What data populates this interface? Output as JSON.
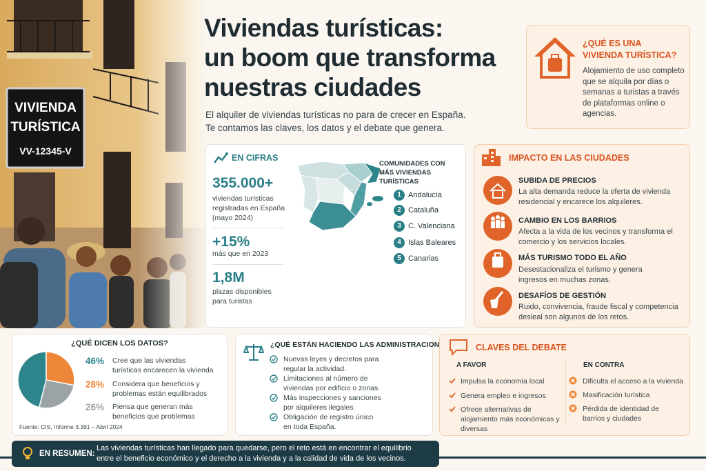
{
  "photo": {
    "sign_line1": "VIVIENDA",
    "sign_line2": "TURÍSTICA",
    "sign_code": "VV-12345-V"
  },
  "header": {
    "title_lines": [
      "Viviendas turísticas:",
      "un boom que transforma",
      "nuestras ciudades"
    ],
    "subtitle_lines": [
      "El alquiler de viviendas turísticas no para de crecer en España.",
      "Te contamos las claves, los datos y el debate que genera."
    ]
  },
  "definition": {
    "title_lines": [
      "¿QUÉ ES UNA",
      "VIVIENDA TURÍSTICA?"
    ],
    "body": "Alojamiento de uso completo que se alquila por días o semanas a turistas a través de plataformas online o agencias."
  },
  "figures": {
    "title": "EN CIFRAS",
    "stats": [
      {
        "value": "355.000+",
        "text": "viviendas turísticas registradas en España (mayo 2024)"
      },
      {
        "value": "+15%",
        "text": "más que en 2023"
      },
      {
        "value": "1,8M",
        "text": "plazas disponibles para turistas"
      }
    ]
  },
  "communities": {
    "title": "COMUNIDADES CON MÁS VIVIENDAS TURÍSTICAS",
    "items": [
      {
        "rank": 1,
        "name": "Andalucía"
      },
      {
        "rank": 2,
        "name": "Cataluña"
      },
      {
        "rank": 3,
        "name": "C. Valenciana"
      },
      {
        "rank": 4,
        "name": "Islas Baleares"
      },
      {
        "rank": 5,
        "name": "Canarias"
      }
    ]
  },
  "impact": {
    "title": "IMPACTO EN LAS CIUDADES",
    "items": [
      {
        "title": "SUBIDA DE PRECIOS",
        "text": "La alta demanda reduce la oferta de vivienda residencial y encarece los alquileres."
      },
      {
        "title": "CAMBIO EN LOS BARRIOS",
        "text": "Afecta a la vida de los vecinos y transforma el comercio y los servicios locales."
      },
      {
        "title": "MÁS TURISMO TODO EL AÑO",
        "text": "Desestacionaliza el turismo y genera ingresos en muchas zonas."
      },
      {
        "title": "DESAFÍOS DE GESTIÓN",
        "text": "Ruido, convivencia, fraude fiscal y competencia desleal son algunos de los retos."
      }
    ]
  },
  "survey": {
    "title": "¿QUÉ DICEN LOS DATOS?",
    "values": [
      46,
      28,
      26
    ],
    "value_labels": [
      "46%",
      "28%",
      "26%"
    ],
    "colors": [
      "#2e858b",
      "#ef873a",
      "#9ca3a7"
    ],
    "descriptions": [
      "Cree que las viviendas turísticas encarecen la vivienda",
      "Considera que beneficios y problemas están equilibrados",
      "Piensa que generan más beneficios que problemas"
    ],
    "source": "Fuente: CIS, Informe 3.391 – Abril 2024"
  },
  "administrations": {
    "title": "¿QUÉ ESTÁN HACIENDO LAS ADMINISTRACIONES?",
    "items": [
      "Nuevas leyes y decretos para regular la actividad.",
      "Limitaciones al número de viviendas por edificio o zonas.",
      "Más inspecciones y sanciones por alquileres ilegales.",
      "Obligación de registro único en toda España."
    ]
  },
  "debate": {
    "title": "CLAVES DEL DEBATE",
    "pro_title": "A FAVOR",
    "pro": [
      "Impulsa la economía local",
      "Genera empleo e ingresos",
      "Ofrece alternativas de alojamiento más económicas y diversas"
    ],
    "con_title": "EN CONTRA",
    "con": [
      "Dificulta el acceso a la vivienda",
      "Masificación turística",
      "Pérdida de identidad de barrios y ciudades"
    ]
  },
  "summary": {
    "label": "EN RESUMEN:",
    "text": "Las viviendas turísticas han llegado para quedarse, pero el reto está en encontrar el equilibrio entre el beneficio económico y el derecho a la vivienda y a la calidad de vida de los vecinos."
  }
}
